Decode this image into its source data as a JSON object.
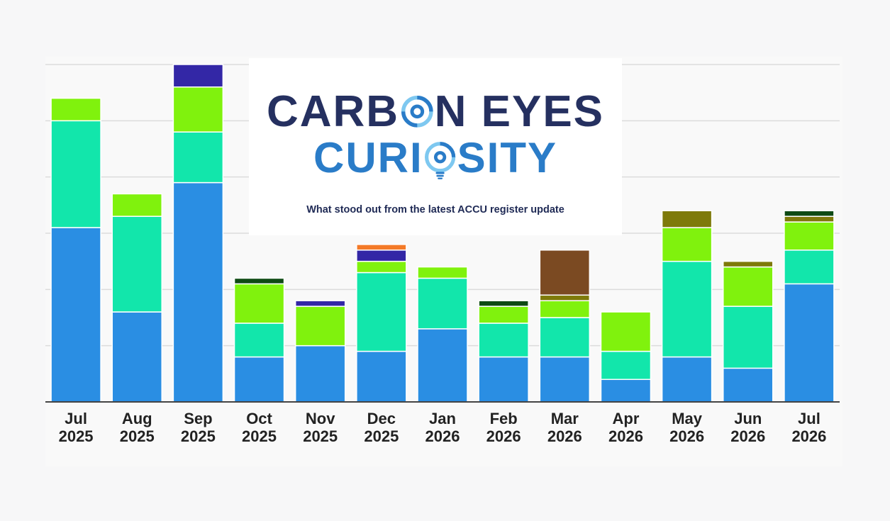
{
  "logo": {
    "line1": [
      "CARB",
      "N EYES"
    ],
    "line2": [
      "CURI",
      "SITY"
    ],
    "tagline": "What stood out from the latest ACCU register update",
    "colors": {
      "dark": "#253060",
      "light": "#2a7cc8",
      "accent": "#7ec8f0"
    }
  },
  "chart_data": {
    "type": "bar",
    "stacked": true,
    "categories": [
      "Jul 2025",
      "Aug 2025",
      "Sep 2025",
      "Oct 2025",
      "Nov 2025",
      "Dec 2025",
      "Jan 2026",
      "Feb 2026",
      "Mar 2026",
      "Apr 2026",
      "May 2026",
      "Jun 2026",
      "Jul 2026"
    ],
    "ylim": [
      0,
      6
    ],
    "grid": true,
    "yticks_shown": false,
    "colors": [
      "#2a8ee3",
      "#12e6ab",
      "#80f20d",
      "#7e7a0a",
      "#7b4a22",
      "#0e4a14",
      "#3327a6",
      "#f47a28"
    ],
    "series": [
      {
        "values": [
          3.1,
          1.6,
          3.9,
          0.8,
          1.0,
          0.9,
          1.3,
          0.8,
          0.8,
          0.4,
          0.8,
          0.6,
          2.1
        ]
      },
      {
        "values": [
          1.9,
          1.7,
          0.9,
          0.6,
          0.0,
          1.4,
          0.9,
          0.6,
          0.7,
          0.5,
          1.7,
          1.1,
          0.6
        ]
      },
      {
        "values": [
          0.4,
          0.4,
          0.8,
          0.7,
          0.7,
          0.2,
          0.2,
          0.3,
          0.3,
          0.7,
          0.6,
          0.7,
          0.5
        ]
      },
      {
        "values": [
          0,
          0,
          0,
          0,
          0,
          0,
          0,
          0,
          0.1,
          0,
          0.3,
          0.1,
          0.1
        ]
      },
      {
        "values": [
          0,
          0,
          0,
          0,
          0,
          0,
          0,
          0,
          0.8,
          0,
          0,
          0,
          0
        ]
      },
      {
        "values": [
          0,
          0,
          0,
          0.1,
          0,
          0,
          0,
          0.1,
          0,
          0,
          0,
          0,
          0.1
        ]
      },
      {
        "values": [
          0,
          0,
          0.4,
          0,
          0.1,
          0.2,
          0,
          0,
          0,
          0,
          0,
          0,
          0
        ]
      },
      {
        "values": [
          0,
          0,
          0,
          0,
          0,
          0.1,
          0,
          0,
          0,
          0,
          0,
          0,
          0
        ]
      }
    ]
  }
}
